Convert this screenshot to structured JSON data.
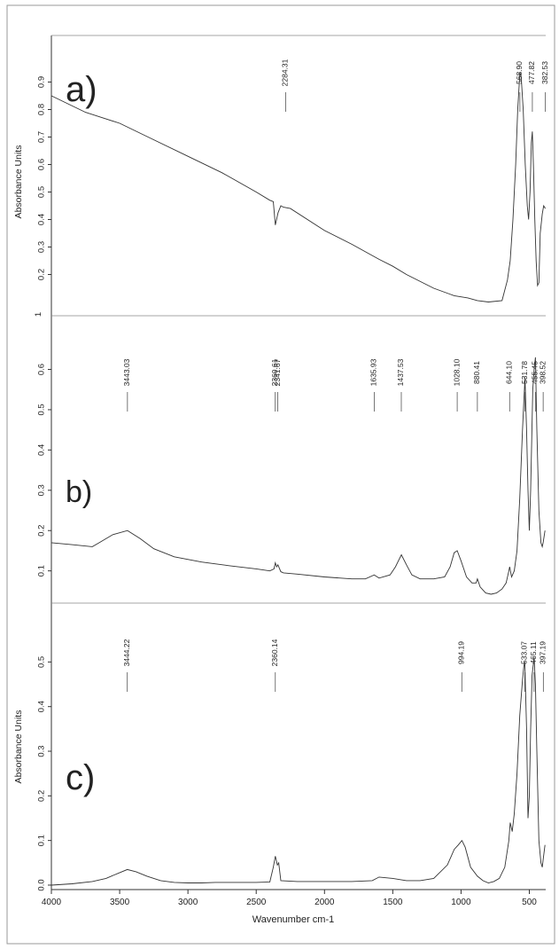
{
  "chart_data": [
    {
      "type": "line",
      "panel_label": "a)",
      "ylabel": "Absorbance Units",
      "ylim": [
        0.05,
        1.05
      ],
      "y_ticks": [
        "0.2",
        "0.3",
        "0.4",
        "0.5",
        "0.6",
        "0.7",
        "0.8",
        "0.9"
      ],
      "y_tick_values": [
        0.2,
        0.3,
        0.4,
        0.5,
        0.6,
        0.7,
        0.8,
        0.9
      ],
      "bottom_tick": {
        "label": "1",
        "value": 0.1
      },
      "peak_labels": [
        "2284.31",
        "568.90",
        "477.82",
        "382.53"
      ],
      "peak_values": [
        2284.31,
        568.9,
        477.82,
        382.53
      ],
      "series": [
        {
          "x": [
            4000,
            3750,
            3500,
            3250,
            3000,
            2750,
            2500,
            2400,
            2375,
            2360,
            2340,
            2320,
            2300,
            2250,
            2000,
            1800,
            1600,
            1500,
            1400,
            1200,
            1050,
            950,
            880,
            800,
            700,
            660,
            640,
            620,
            600,
            585,
            568.9,
            560,
            545,
            530,
            515,
            505,
            495,
            485,
            477.8,
            470,
            460,
            450,
            440,
            430,
            420,
            405,
            395,
            382.5
          ],
          "y": [
            0.85,
            0.79,
            0.75,
            0.69,
            0.63,
            0.57,
            0.5,
            0.47,
            0.465,
            0.38,
            0.425,
            0.45,
            0.445,
            0.44,
            0.36,
            0.31,
            0.255,
            0.23,
            0.2,
            0.15,
            0.123,
            0.115,
            0.105,
            0.1,
            0.105,
            0.18,
            0.25,
            0.4,
            0.6,
            0.8,
            0.935,
            0.92,
            0.8,
            0.6,
            0.45,
            0.4,
            0.5,
            0.68,
            0.72,
            0.6,
            0.4,
            0.25,
            0.16,
            0.17,
            0.35,
            0.42,
            0.45,
            0.44
          ]
        }
      ]
    },
    {
      "type": "line",
      "panel_label": "b)",
      "ylabel": "",
      "ylim": [
        0.02,
        0.72
      ],
      "y_ticks": [
        "0.1",
        "0.2",
        "0.3",
        "0.4",
        "0.5",
        "0.6"
      ],
      "y_tick_values": [
        0.1,
        0.2,
        0.3,
        0.4,
        0.5,
        0.6
      ],
      "peak_labels": [
        "3443.03",
        "2360.61",
        "2341.67",
        "1635.93",
        "1437.53",
        "1028.10",
        "880.41",
        "644.10",
        "531.78",
        "455.45",
        "398.52"
      ],
      "peak_values": [
        3443.03,
        2360.61,
        2341.67,
        1635.93,
        1437.53,
        1028.1,
        880.41,
        644.1,
        531.78,
        455.45,
        398.52
      ],
      "series": [
        {
          "x": [
            4000,
            3850,
            3700,
            3650,
            3550,
            3443,
            3350,
            3250,
            3100,
            2900,
            2700,
            2500,
            2400,
            2370,
            2360,
            2350,
            2341,
            2320,
            2300,
            2200,
            2000,
            1800,
            1700,
            1636,
            1600,
            1520,
            1480,
            1437,
            1400,
            1360,
            1300,
            1200,
            1120,
            1080,
            1050,
            1028,
            1000,
            960,
            920,
            890,
            880,
            860,
            820,
            780,
            740,
            700,
            670,
            650,
            644,
            630,
            610,
            590,
            570,
            550,
            540,
            531.8,
            520,
            510,
            500,
            490,
            475,
            465,
            455.4,
            445,
            430,
            415,
            405,
            398.5,
            385
          ],
          "y": [
            0.17,
            0.165,
            0.16,
            0.17,
            0.19,
            0.2,
            0.18,
            0.155,
            0.135,
            0.122,
            0.113,
            0.105,
            0.1,
            0.105,
            0.12,
            0.11,
            0.115,
            0.098,
            0.095,
            0.092,
            0.085,
            0.08,
            0.08,
            0.09,
            0.082,
            0.09,
            0.11,
            0.14,
            0.115,
            0.09,
            0.08,
            0.08,
            0.085,
            0.11,
            0.145,
            0.15,
            0.125,
            0.085,
            0.07,
            0.07,
            0.08,
            0.06,
            0.045,
            0.042,
            0.045,
            0.055,
            0.07,
            0.1,
            0.11,
            0.085,
            0.1,
            0.15,
            0.28,
            0.45,
            0.52,
            0.58,
            0.45,
            0.3,
            0.2,
            0.3,
            0.55,
            0.6,
            0.63,
            0.45,
            0.25,
            0.17,
            0.16,
            0.17,
            0.2
          ]
        }
      ]
    },
    {
      "type": "line",
      "panel_label": "c)",
      "ylabel": "Absorbance Units",
      "xlabel": "Wavenumber cm-1",
      "xlim": [
        4000,
        380
      ],
      "x_ticks": [
        "4000",
        "3500",
        "3000",
        "2500",
        "2000",
        "1500",
        "1000",
        "500"
      ],
      "x_tick_values": [
        4000,
        3500,
        3000,
        2500,
        2000,
        1500,
        1000,
        500
      ],
      "ylim": [
        -0.01,
        0.62
      ],
      "y_ticks": [
        "0.0",
        "0.1",
        "0.2",
        "0.3",
        "0.4",
        "0.5"
      ],
      "y_tick_values": [
        0.0,
        0.1,
        0.2,
        0.3,
        0.4,
        0.5
      ],
      "peak_labels": [
        "3444.22",
        "2360.14",
        "994.19",
        "533.07",
        "465.11",
        "397.19"
      ],
      "peak_values": [
        3444.22,
        2360.14,
        994.19,
        533.07,
        465.11,
        397.19
      ],
      "series": [
        {
          "x": [
            4000,
            3850,
            3700,
            3600,
            3500,
            3444,
            3380,
            3300,
            3200,
            3100,
            3000,
            2900,
            2800,
            2700,
            2500,
            2400,
            2375,
            2360,
            2345,
            2335,
            2320,
            2200,
            2000,
            1800,
            1650,
            1600,
            1500,
            1400,
            1300,
            1200,
            1100,
            1050,
            1020,
            994,
            970,
            930,
            880,
            840,
            800,
            760,
            720,
            680,
            650,
            640,
            625,
            610,
            590,
            570,
            550,
            540,
            533,
            520,
            510,
            500,
            490,
            480,
            465,
            455,
            445,
            430,
            415,
            405,
            397.2,
            385
          ],
          "y": [
            0.0,
            0.003,
            0.008,
            0.015,
            0.028,
            0.035,
            0.03,
            0.02,
            0.01,
            0.006,
            0.005,
            0.005,
            0.006,
            0.006,
            0.006,
            0.007,
            0.04,
            0.065,
            0.045,
            0.05,
            0.01,
            0.008,
            0.008,
            0.008,
            0.01,
            0.018,
            0.015,
            0.01,
            0.01,
            0.015,
            0.045,
            0.08,
            0.09,
            0.1,
            0.085,
            0.04,
            0.02,
            0.01,
            0.005,
            0.008,
            0.015,
            0.04,
            0.1,
            0.14,
            0.12,
            0.16,
            0.25,
            0.38,
            0.46,
            0.49,
            0.5,
            0.35,
            0.15,
            0.2,
            0.35,
            0.47,
            0.51,
            0.45,
            0.3,
            0.1,
            0.05,
            0.04,
            0.06,
            0.09
          ]
        }
      ]
    }
  ]
}
